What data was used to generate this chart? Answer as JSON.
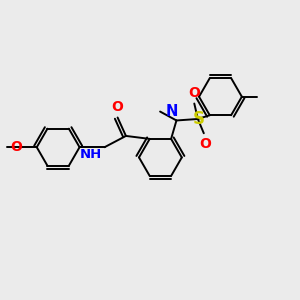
{
  "background_color": "#ebebeb",
  "bond_color": "#000000",
  "atom_colors": {
    "O": "#ff0000",
    "N": "#0000ff",
    "S": "#cccc00",
    "C": "#000000",
    "H": "#008888"
  },
  "figsize": [
    3.0,
    3.0
  ],
  "dpi": 100
}
